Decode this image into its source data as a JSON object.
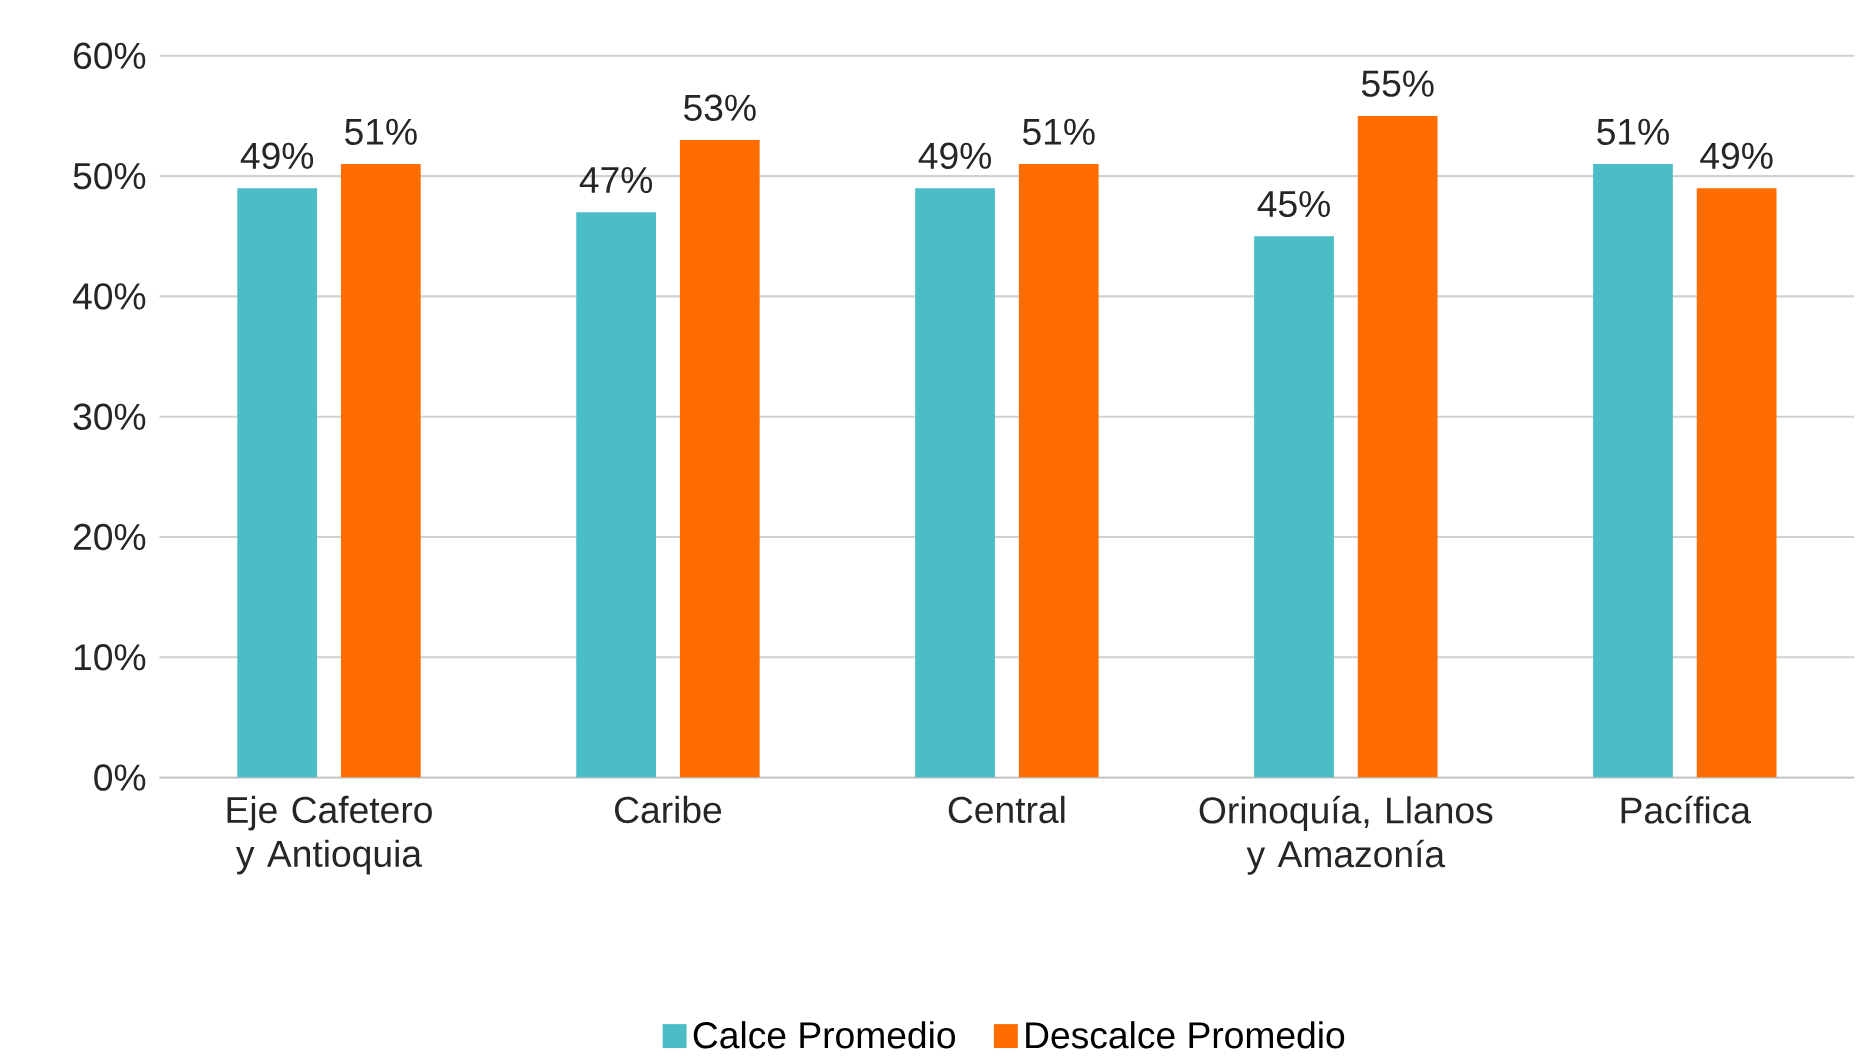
{
  "chart_data": {
    "type": "bar",
    "categories": [
      "Eje Cafetero y Antioquia",
      "Caribe",
      "Central",
      "Orinoquía, Llanos y Amazonía",
      "Pacífica"
    ],
    "series": [
      {
        "name": "Calce Promedio",
        "color": "#4bbdc6",
        "values": [
          49,
          47,
          49,
          45,
          51
        ],
        "value_labels": [
          "49%",
          "47%",
          "49%",
          "45%",
          "51%"
        ]
      },
      {
        "name": "Descalce Promedio",
        "color": "#ff6d00",
        "values": [
          51,
          53,
          51,
          55,
          49
        ],
        "value_labels": [
          "51%",
          "53%",
          "51%",
          "55%",
          "49%"
        ]
      }
    ],
    "ylim": [
      0,
      60
    ],
    "yticks": [
      {
        "value": 0,
        "label": "0%"
      },
      {
        "value": 10,
        "label": "10%"
      },
      {
        "value": 20,
        "label": "20%"
      },
      {
        "value": 30,
        "label": "30%"
      },
      {
        "value": 40,
        "label": "40%"
      },
      {
        "value": 50,
        "label": "50%"
      },
      {
        "value": 60,
        "label": "60%"
      }
    ],
    "grid": "y",
    "legend": "bottom"
  }
}
